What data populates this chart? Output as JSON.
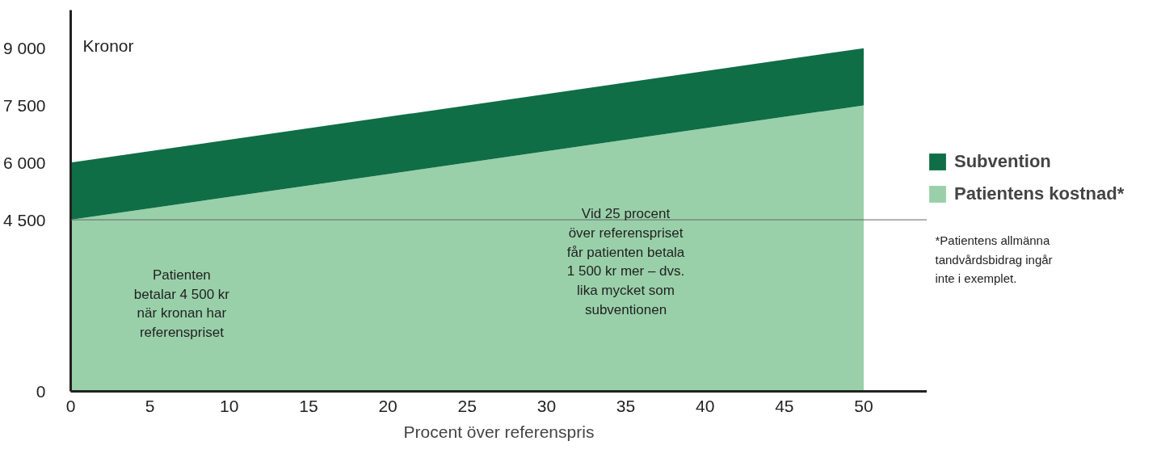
{
  "chart_data": {
    "type": "area",
    "stacked": true,
    "xlabel": "Procent över referenspris",
    "ylabel": "Kronor",
    "x": [
      0,
      50
    ],
    "series": [
      {
        "name": "Patientens kostnad*",
        "color": "#99d0a9",
        "values": [
          4500,
          7500
        ]
      },
      {
        "name": "Subvention",
        "color": "#0f6e46",
        "values": [
          1500,
          1500
        ]
      }
    ],
    "xlim": [
      0,
      54
    ],
    "ylim": [
      0,
      10000
    ],
    "xticks": [
      0,
      5,
      10,
      15,
      20,
      25,
      30,
      35,
      40,
      45,
      50
    ],
    "yticks": [
      0,
      {
        "value": 4500,
        "label": "4 500"
      },
      {
        "value": 6000,
        "label": "6 000"
      },
      {
        "value": 7500,
        "label": "7 500"
      },
      {
        "value": 9000,
        "label": "9 000"
      }
    ],
    "grid": false,
    "legend": "right",
    "ref_lines": [
      {
        "axis": "y",
        "value": 4500,
        "color": "#666666"
      }
    ],
    "annotations": [
      "Patienten\nbetalar 4 500 kr\nnär kronan har\nreferenspriset",
      "Vid 25 procent\növer referenspriset\nfår patienten betala\n1 500 kr mer – dvs.\nlika mycket som\nsubventionen",
      "*Patientens allmänna\n  tandvårdsbidrag ingår\n  inte i exemplet."
    ]
  }
}
